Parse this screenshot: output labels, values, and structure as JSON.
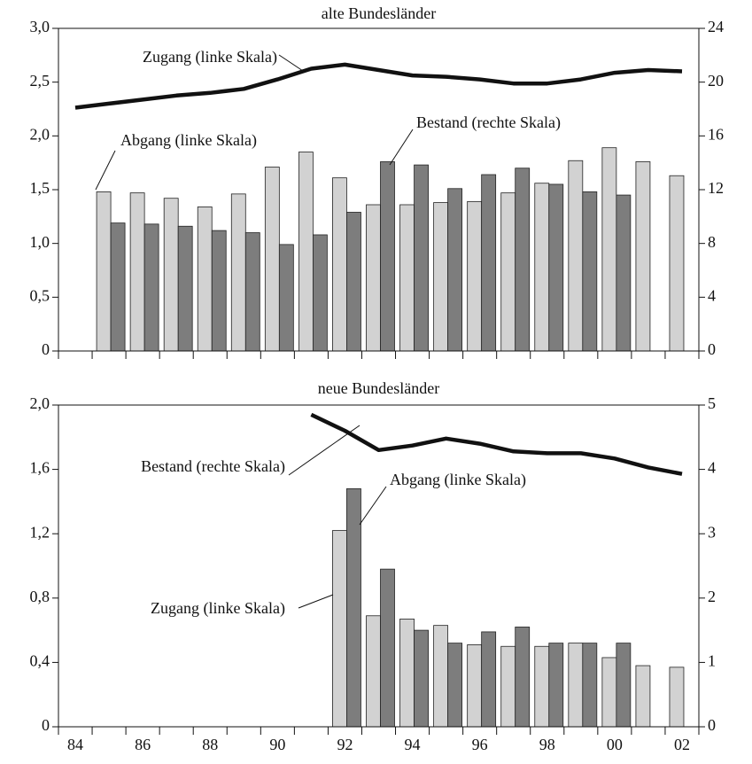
{
  "chart_data": [
    {
      "type": "bar",
      "title": "alte Bundesländer",
      "categories": [
        null,
        null,
        null,
        null,
        null,
        null,
        null,
        null,
        null,
        null,
        null,
        null,
        null,
        null,
        null,
        null,
        null,
        null,
        null
      ],
      "series": [
        {
          "name": "Zugang (linke Skala)",
          "color": "#d2d2d2",
          "values": [
            null,
            1.48,
            1.47,
            1.42,
            1.34,
            1.46,
            1.71,
            1.85,
            1.61,
            1.36,
            1.36,
            1.38,
            1.39,
            1.47,
            1.56,
            1.77,
            1.89,
            1.76,
            1.63
          ]
        },
        {
          "name": "Abgang (linke Skala)",
          "color": "#7d7d7d",
          "values": [
            null,
            1.19,
            1.18,
            1.16,
            1.12,
            1.1,
            0.99,
            1.08,
            1.29,
            1.76,
            1.73,
            1.51,
            1.64,
            1.7,
            1.55,
            1.48,
            1.45,
            null,
            null
          ]
        },
        {
          "name": "Bestand (rechte Skala)",
          "color": "#111111",
          "axis": "y2",
          "values": [
            18.1,
            18.4,
            18.7,
            19.0,
            19.2,
            19.5,
            20.2,
            21.0,
            21.3,
            20.9,
            20.5,
            20.4,
            20.2,
            19.9,
            19.9,
            20.2,
            20.7,
            20.9,
            20.8
          ]
        }
      ],
      "ylim": [
        0,
        3
      ],
      "yticks": [
        0,
        {
          "value": 0.5,
          "label": "0,5"
        },
        {
          "value": 1,
          "label": "1,0"
        },
        {
          "value": 1.5,
          "label": "1,5"
        },
        {
          "value": 2,
          "label": "2,0"
        },
        {
          "value": 2.5,
          "label": "2,5"
        },
        {
          "value": 3,
          "label": "3,0"
        }
      ],
      "y2lim": [
        0,
        24
      ],
      "y2ticks": [
        0,
        4,
        8,
        12,
        16,
        20,
        24
      ]
    },
    {
      "type": "bar",
      "title": "neue Bundesländer",
      "categories": [
        "84",
        null,
        "86",
        null,
        "88",
        null,
        "90",
        null,
        "92",
        null,
        "94",
        null,
        "96",
        null,
        "98",
        null,
        "00",
        null,
        "02"
      ],
      "series": [
        {
          "name": "Zugang (linke Skala)",
          "color": "#d2d2d2",
          "values": [
            null,
            null,
            null,
            null,
            null,
            null,
            null,
            null,
            1.22,
            0.69,
            0.67,
            0.63,
            0.51,
            0.5,
            0.5,
            0.52,
            0.43,
            0.38,
            0.37
          ]
        },
        {
          "name": "Abgang (linke Skala)",
          "color": "#7d7d7d",
          "values": [
            null,
            null,
            null,
            null,
            null,
            null,
            null,
            null,
            1.48,
            0.98,
            0.6,
            0.52,
            0.59,
            0.62,
            0.52,
            0.52,
            0.52,
            null,
            null
          ]
        },
        {
          "name": "Bestand (rechte Skala)",
          "color": "#111111",
          "axis": "y2",
          "values": [
            null,
            null,
            null,
            null,
            null,
            null,
            null,
            4.85,
            4.6,
            4.3,
            4.37,
            4.48,
            4.4,
            4.28,
            4.25,
            4.25,
            4.17,
            4.03,
            3.93
          ]
        }
      ],
      "ylim": [
        0,
        2
      ],
      "yticks": [
        0,
        {
          "value": 0.4,
          "label": "0,4"
        },
        {
          "value": 0.8,
          "label": "0,8"
        },
        {
          "value": 1.2,
          "label": "1,2"
        },
        {
          "value": 1.6,
          "label": "1,6"
        },
        {
          "value": 2,
          "label": "2,0"
        }
      ],
      "y2lim": [
        0,
        5
      ],
      "y2ticks": [
        0,
        1,
        2,
        3,
        4,
        5
      ]
    }
  ]
}
